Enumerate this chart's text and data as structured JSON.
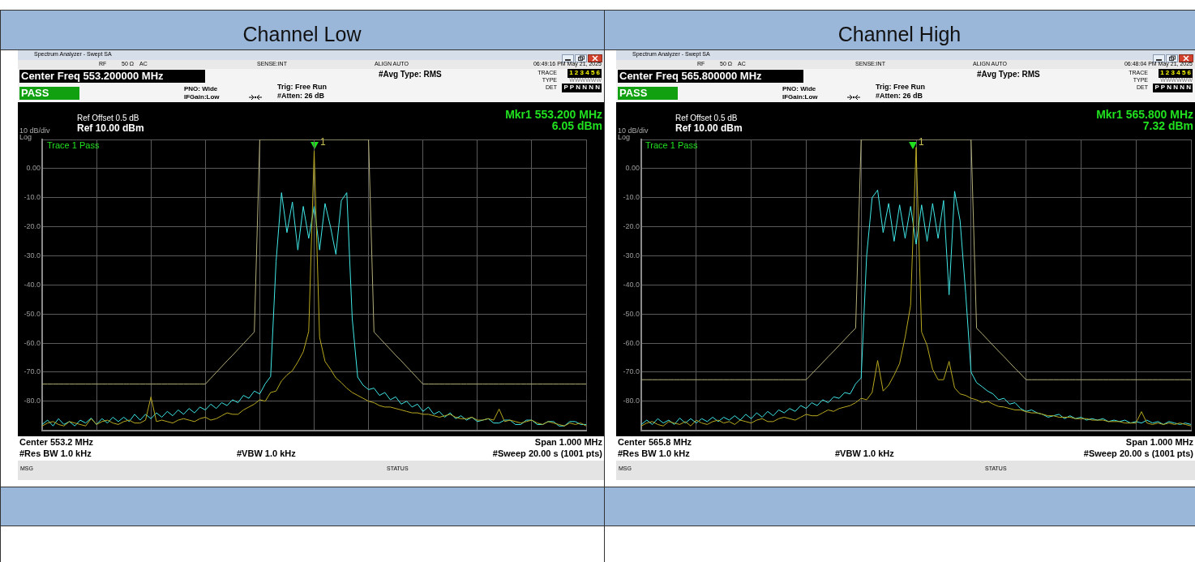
{
  "chart_data": [
    {
      "type": "line",
      "title": "Channel Low",
      "categories": [
        null,
        null,
        null,
        null,
        null,
        null,
        null,
        null,
        null,
        null,
        null,
        null,
        null,
        null,
        null,
        null,
        null,
        null,
        null,
        null,
        null,
        null,
        null,
        null,
        null,
        null,
        null,
        null,
        null,
        null,
        null,
        null,
        null,
        null,
        null,
        null,
        null,
        null,
        null,
        null,
        null,
        null,
        null,
        null,
        null,
        null,
        null,
        null,
        null,
        null,
        null,
        null,
        null,
        null,
        null,
        null,
        null,
        null,
        null,
        null,
        null,
        null,
        null,
        null,
        null,
        null,
        null,
        null,
        null,
        null,
        null,
        null,
        null,
        null,
        null,
        null,
        null,
        null,
        null,
        null,
        null,
        null,
        null,
        null,
        null,
        null,
        null,
        null,
        null,
        null,
        null,
        null,
        null,
        null,
        null,
        null,
        null,
        null,
        null,
        null,
        null
      ],
      "ylim": [
        -90,
        10
      ],
      "yticks": [
        {
          "value": 10,
          "label": null
        },
        {
          "value": 0,
          "label": "0.00"
        },
        {
          "value": -10,
          "label": "-10.0"
        },
        {
          "value": -20,
          "label": "-20.0"
        },
        {
          "value": -30,
          "label": "-30.0"
        },
        {
          "value": -40,
          "label": "-40.0"
        },
        {
          "value": -50,
          "label": "-50.0"
        },
        {
          "value": -60,
          "label": "-60.0"
        },
        {
          "value": -70,
          "label": "-70.0"
        },
        {
          "value": -80,
          "label": "-80.0"
        },
        {
          "value": -90,
          "label": null
        }
      ],
      "grid": true,
      "tick_labels": "y",
      "marker": "none",
      "line_style": "solid",
      "series": [
        {
          "color": "#b4ae78",
          "values": [
            -74.1,
            -74.1,
            -74.1,
            -74.1,
            -74.1,
            -74.1,
            -74.1,
            -74.1,
            -74.1,
            -74.1,
            -74.1,
            -74.1,
            -74.1,
            -74.1,
            -74.1,
            -74.1,
            -74.1,
            -74.1,
            -74.1,
            -74.1,
            -74.1,
            -74.1,
            -74.1,
            -74.1,
            -74.1,
            -74.1,
            -74.1,
            -74.1,
            -74.1,
            -74.1,
            -74.1,
            -72.1,
            -70.1,
            -68.1,
            -66.1,
            -64.2,
            -62.2,
            -60.2,
            -58.2,
            -56.2,
            10,
            10,
            10,
            10,
            10,
            10,
            10,
            10,
            10,
            10,
            10,
            10,
            10,
            10,
            10,
            10,
            10,
            10,
            10,
            10,
            10,
            -56.2,
            -58.2,
            -60.2,
            -62.2,
            -64.2,
            -66.1,
            -68.1,
            -70.1,
            -72.1,
            -74.1,
            -74.1,
            -74.1,
            -74.1,
            -74.1,
            -74.1,
            -74.1,
            -74.1,
            -74.1,
            -74.1,
            -74.1,
            -74.1,
            -74.1,
            -74.1,
            -74.1,
            -74.1,
            -74.1,
            -74.1,
            -74.1,
            -74.1,
            -74.1,
            -74.1,
            -74.1,
            -74.1,
            -74.1,
            -74.1,
            -74.1,
            -74.1,
            -74.1,
            -74.1,
            -74.1
          ]
        },
        {
          "color": "#b8a820",
          "values": [
            -88.5,
            -87.5,
            -87,
            -88,
            -88.5,
            -87,
            -87.5,
            -88,
            -88.5,
            -86,
            -88,
            -87,
            -86.5,
            -87.5,
            -88,
            -87,
            -86.5,
            -87.5,
            -87.5,
            -86.5,
            -78.5,
            -87,
            -86.5,
            -87,
            -87.5,
            -86.5,
            -86,
            -86.5,
            -87,
            -86,
            -85.5,
            -86.5,
            -86,
            -85,
            -84,
            -84.5,
            -84.5,
            -83,
            -82,
            -81,
            -79.5,
            -80,
            -77,
            -76.5,
            -73,
            -71,
            -69.5,
            -66.5,
            -63,
            -56,
            6.05,
            -58,
            -66.3,
            -69,
            -72,
            -73.6,
            -75.5,
            -77,
            -78,
            -79,
            -80,
            -80.5,
            -81.5,
            -82,
            -82,
            -82.5,
            -83,
            -83.5,
            -84,
            -84,
            -84.5,
            -84.5,
            -85,
            -85.5,
            -85,
            -84.5,
            -85.5,
            -86,
            -86,
            -85.5,
            -86.5,
            -86.5,
            -86,
            -86.5,
            -82.7,
            -87,
            -86.5,
            -87,
            -87.5,
            -87,
            -86.5,
            -87.5,
            -88,
            -87,
            -87.5,
            -88,
            -88.5,
            -87.5,
            -88,
            -87.5,
            -88.5
          ]
        },
        {
          "color": "#40e8e8",
          "values": [
            -88,
            -86.5,
            -88.5,
            -86,
            -88,
            -87,
            -88.5,
            -86.5,
            -87.5,
            -85.8,
            -88,
            -86,
            -87.5,
            -85.5,
            -87,
            -85.5,
            -87,
            -84.5,
            -86.5,
            -84.5,
            -86,
            -84,
            -85.5,
            -83.5,
            -85,
            -83,
            -84.5,
            -82.5,
            -84,
            -82,
            -83,
            -81,
            -82.5,
            -80.5,
            -81.5,
            -79.5,
            -80.5,
            -78,
            -79,
            -76.5,
            -77.5,
            -74,
            -71.5,
            -32,
            -8.3,
            -22,
            -11.5,
            -28,
            -13,
            -24,
            -13,
            -28,
            -12,
            -20,
            -29.5,
            -11,
            -8.3,
            -51.6,
            -71.7,
            -74.5,
            -76,
            -75.5,
            -78,
            -77,
            -79.5,
            -78.5,
            -81,
            -80,
            -82,
            -81,
            -83.5,
            -82,
            -84.5,
            -83.5,
            -85.5,
            -84,
            -86,
            -85,
            -86.5,
            -85.5,
            -87,
            -86.5,
            -86,
            -87.5,
            -87.5,
            -86.5,
            -86.5,
            -88,
            -88,
            -86.5,
            -86.5,
            -88,
            -88,
            -87,
            -87,
            -88.5,
            -88.5,
            -87,
            -87,
            -88,
            -88
          ]
        }
      ],
      "annotations": [
        "Spectrum Analyzer - Swept SA",
        "RF",
        "50 Ω",
        "AC",
        "SENSE:INT",
        "ALIGN AUTO",
        "06:49:16 PM May 21, 2025",
        "Center Freq 553.200000 MHz",
        "#Avg Type: RMS",
        "TRACE",
        "1 2 3 4 5 6",
        "TYPE",
        "WWWWWW",
        "DET",
        "P P N N N N",
        "PASS",
        "PNO: Wide",
        "IFGain:Low",
        "Trig: Free Run",
        "#Atten: 26 dB",
        "Ref Offset 0.5 dB",
        "Ref 10.00 dBm",
        "10 dB/div",
        "Log",
        "Mkr1 553.200 MHz",
        "6.05 dBm",
        "Trace 1 Pass",
        "Center  553.2 MHz",
        "#Res BW 1.0 kHz",
        "#VBW 1.0 kHz",
        "Span 1.000 MHz",
        "#Sweep  20.00 s (1001 pts)",
        "MSG",
        "STATUS",
        "1"
      ]
    },
    {
      "type": "line",
      "title": "Channel High",
      "categories": [
        null,
        null,
        null,
        null,
        null,
        null,
        null,
        null,
        null,
        null,
        null,
        null,
        null,
        null,
        null,
        null,
        null,
        null,
        null,
        null,
        null,
        null,
        null,
        null,
        null,
        null,
        null,
        null,
        null,
        null,
        null,
        null,
        null,
        null,
        null,
        null,
        null,
        null,
        null,
        null,
        null,
        null,
        null,
        null,
        null,
        null,
        null,
        null,
        null,
        null,
        null,
        null,
        null,
        null,
        null,
        null,
        null,
        null,
        null,
        null,
        null,
        null,
        null,
        null,
        null,
        null,
        null,
        null,
        null,
        null,
        null,
        null,
        null,
        null,
        null,
        null,
        null,
        null,
        null,
        null,
        null,
        null,
        null,
        null,
        null,
        null,
        null,
        null,
        null,
        null,
        null,
        null,
        null,
        null,
        null,
        null,
        null,
        null,
        null,
        null,
        null
      ],
      "ylim": [
        -90,
        10
      ],
      "yticks": [
        {
          "value": 10,
          "label": null
        },
        {
          "value": 0,
          "label": "0.00"
        },
        {
          "value": -10,
          "label": "-10.0"
        },
        {
          "value": -20,
          "label": "-20.0"
        },
        {
          "value": -30,
          "label": "-30.0"
        },
        {
          "value": -40,
          "label": "-40.0"
        },
        {
          "value": -50,
          "label": "-50.0"
        },
        {
          "value": -60,
          "label": "-60.0"
        },
        {
          "value": -70,
          "label": "-70.0"
        },
        {
          "value": -80,
          "label": "-80.0"
        },
        {
          "value": -90,
          "label": null
        }
      ],
      "grid": true,
      "tick_labels": "y",
      "marker": "none",
      "line_style": "solid",
      "series": [
        {
          "color": "#b4ae78",
          "values": [
            -72.6,
            -72.6,
            -72.6,
            -72.6,
            -72.6,
            -72.6,
            -72.6,
            -72.6,
            -72.6,
            -72.6,
            -72.6,
            -72.6,
            -72.6,
            -72.6,
            -72.6,
            -72.6,
            -72.6,
            -72.6,
            -72.6,
            -72.6,
            -72.6,
            -72.6,
            -72.6,
            -72.6,
            -72.6,
            -72.6,
            -72.6,
            -72.6,
            -72.6,
            -72.6,
            -72.6,
            -70.6,
            -68.7,
            -66.7,
            -64.7,
            -62.8,
            -60.8,
            -58.8,
            -56.8,
            -54.9,
            10,
            10,
            10,
            10,
            10,
            10,
            10,
            10,
            10,
            10,
            10,
            10,
            10,
            10,
            10,
            10,
            10,
            10,
            10,
            10,
            10,
            -54.9,
            -56.8,
            -58.8,
            -60.8,
            -62.8,
            -64.7,
            -66.7,
            -68.7,
            -70.6,
            -72.6,
            -72.6,
            -72.6,
            -72.6,
            -72.6,
            -72.6,
            -72.6,
            -72.6,
            -72.6,
            -72.6,
            -72.6,
            -72.6,
            -72.6,
            -72.6,
            -72.6,
            -72.6,
            -72.6,
            -72.6,
            -72.6,
            -72.6,
            -72.6,
            -72.6,
            -72.6,
            -72.6,
            -72.6,
            -72.6,
            -72.6,
            -72.6,
            -72.6,
            -72.6,
            -72.6
          ]
        },
        {
          "color": "#b8a820",
          "values": [
            -88.5,
            -87.5,
            -87,
            -88,
            -88.5,
            -87,
            -87.5,
            -88,
            -87,
            -88.5,
            -86.5,
            -87.5,
            -88,
            -87,
            -86.5,
            -87.5,
            -87,
            -88,
            -86.5,
            -87,
            -87.5,
            -86.5,
            -86,
            -87,
            -87,
            -86,
            -85.5,
            -86,
            -86.5,
            -85.5,
            -84.5,
            -85,
            -85,
            -84,
            -83,
            -83.5,
            -82.5,
            -82,
            -81.5,
            -80.5,
            -79,
            -79.5,
            -77,
            -66,
            -76.5,
            -74.5,
            -71,
            -67,
            -58,
            -47,
            7.32,
            -56.2,
            -60.8,
            -69,
            -72.6,
            -72.6,
            -66.3,
            -75.4,
            -77.5,
            -78,
            -79,
            -79.5,
            -80.5,
            -80,
            -81,
            -81.8,
            -82,
            -82.5,
            -83,
            -83,
            -83.6,
            -84,
            -84,
            -84.5,
            -85,
            -85,
            -85.5,
            -85.5,
            -85.5,
            -86,
            -86,
            -86,
            -86.5,
            -86.5,
            -86.5,
            -87,
            -87,
            -87,
            -87.5,
            -87.5,
            -87.5,
            -83.6,
            -87.5,
            -88,
            -87.5,
            -88,
            -87.5,
            -88,
            -87.5,
            -88,
            -88.5
          ]
        },
        {
          "color": "#40e8e8",
          "values": [
            -88,
            -86.5,
            -88,
            -86,
            -87.5,
            -86.5,
            -88,
            -85.8,
            -87.5,
            -86,
            -87.5,
            -86,
            -87,
            -85.5,
            -87,
            -85.5,
            -86.5,
            -85,
            -86.5,
            -84.5,
            -86,
            -84,
            -85.5,
            -83.5,
            -85,
            -83,
            -84,
            -82.5,
            -83.5,
            -81.5,
            -82.5,
            -80.5,
            -81.5,
            -79.5,
            -80.5,
            -78.5,
            -79,
            -77,
            -77.5,
            -74,
            -72,
            -30,
            -10,
            -7.4,
            -22,
            -12,
            -25,
            -12.5,
            -24,
            -13,
            -26,
            -12.5,
            -25,
            -12,
            -24,
            -11,
            -43.4,
            -7.8,
            -17.9,
            -42.5,
            -70,
            -73.6,
            -75,
            -76.5,
            -77.5,
            -79.5,
            -79,
            -81,
            -80.5,
            -82.5,
            -83.5,
            -83,
            -84,
            -84.5,
            -85.5,
            -85,
            -84.5,
            -86,
            -85,
            -86,
            -85.5,
            -86.5,
            -86,
            -86.5,
            -86,
            -87,
            -86.5,
            -87,
            -86.5,
            -87.5,
            -87,
            -87.5,
            -86.5,
            -87.5,
            -87,
            -88,
            -87,
            -87.5,
            -88,
            -87.5,
            -88
          ]
        }
      ],
      "annotations": [
        "Spectrum Analyzer - Swept SA",
        "RF",
        "50 Ω",
        "AC",
        "SENSE:INT",
        "ALIGN AUTO",
        "06:48:04 PM May 21, 2025",
        "Center Freq 565.800000 MHz",
        "#Avg Type: RMS",
        "TRACE",
        "1 2 3 4 5 6",
        "TYPE",
        "WWWWWW",
        "DET",
        "P P N N N N",
        "PASS",
        "PNO: Wide",
        "IFGain:Low",
        "Trig: Free Run",
        "#Atten: 26 dB",
        "Ref Offset 0.5 dB",
        "Ref 10.00 dBm",
        "10 dB/div",
        "Log",
        "Mkr1 565.800 MHz",
        "7.32 dBm",
        "Trace 1 Pass",
        "Center  565.8 MHz",
        "#Res BW 1.0 kHz",
        "#VBW 1.0 kHz",
        "Span 1.000 MHz",
        "#Sweep  20.00 s (1001 pts)",
        "MSG",
        "STATUS",
        "1"
      ]
    }
  ]
}
